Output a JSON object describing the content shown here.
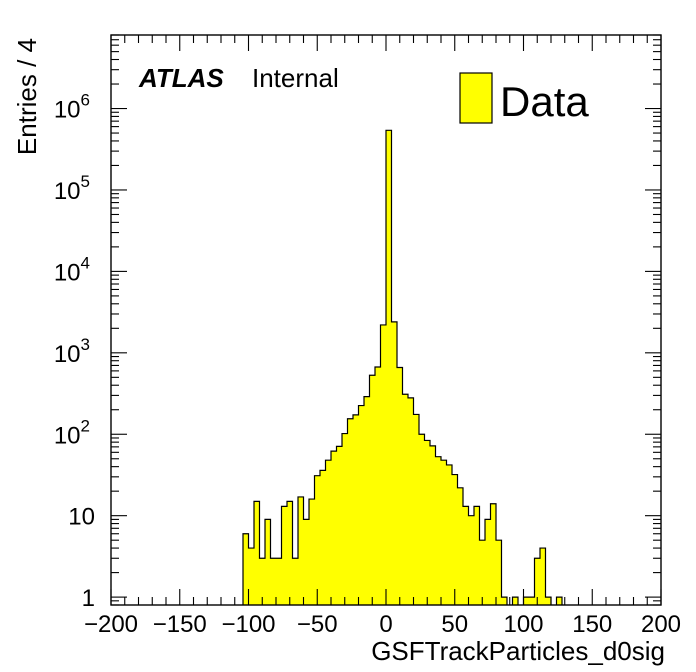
{
  "chart_data": {
    "type": "bar",
    "style": "filled-step-histogram",
    "title": "",
    "xlabel": "GSFTrackParticles_d0sig",
    "ylabel": "Entries / 4",
    "xlim": [
      -200,
      200
    ],
    "ylim": [
      0.8,
      8000000
    ],
    "log_y": true,
    "grid": false,
    "bin_width": 4,
    "x_ticks": [
      {
        "value": -200,
        "label": "−200"
      },
      {
        "value": -150,
        "label": "−150"
      },
      {
        "value": -100,
        "label": "−100"
      },
      {
        "value": -50,
        "label": "−50"
      },
      {
        "value": 0,
        "label": "0"
      },
      {
        "value": 50,
        "label": "50"
      },
      {
        "value": 100,
        "label": "100"
      },
      {
        "value": 150,
        "label": "150"
      },
      {
        "value": 200,
        "label": "200"
      }
    ],
    "y_ticks": [
      {
        "value": 1,
        "base": "1",
        "exp": ""
      },
      {
        "value": 10,
        "base": "10",
        "exp": ""
      },
      {
        "value": 100,
        "base": "10",
        "exp": "2"
      },
      {
        "value": 1000,
        "base": "10",
        "exp": "3"
      },
      {
        "value": 10000,
        "base": "10",
        "exp": "4"
      },
      {
        "value": 100000,
        "base": "10",
        "exp": "5"
      },
      {
        "value": 1000000,
        "base": "10",
        "exp": "6"
      }
    ],
    "series": [
      {
        "name": "Data",
        "color": "#ffff00",
        "edge_color": "#000000",
        "bin_edges": [
          -104,
          -100,
          -96,
          -92,
          -88,
          -84,
          -80,
          -76,
          -72,
          -68,
          -64,
          -60,
          -56,
          -52,
          -48,
          -44,
          -40,
          -36,
          -32,
          -28,
          -24,
          -20,
          -16,
          -12,
          -8,
          -4,
          0,
          4,
          8,
          12,
          16,
          20,
          24,
          28,
          32,
          36,
          40,
          44,
          48,
          52,
          56,
          60,
          64,
          68,
          72,
          76,
          80,
          84,
          88,
          92,
          96,
          100,
          104,
          108,
          112,
          116,
          120,
          124,
          128,
          132
        ],
        "values": [
          6,
          4,
          15,
          3,
          9,
          3,
          3,
          13,
          15,
          3,
          17,
          9,
          16,
          31,
          36,
          48,
          62,
          71,
          102,
          155,
          173,
          225,
          290,
          530,
          670,
          2200,
          540000,
          2400,
          660,
          310,
          280,
          175,
          100,
          84,
          72,
          53,
          48,
          42,
          32,
          22,
          13,
          10,
          13,
          5,
          9,
          14,
          5,
          1,
          0,
          1,
          0,
          1,
          1,
          3,
          4,
          1,
          0,
          1,
          0
        ],
        "fill": "#ffff00"
      }
    ],
    "legend": {
      "position": "top-right",
      "entries": [
        {
          "label": "Data",
          "color": "#ffff00"
        }
      ]
    },
    "annotations": [
      {
        "bold_italic": "ATLAS",
        "regular": "Internal",
        "position": "top-left"
      }
    ]
  }
}
